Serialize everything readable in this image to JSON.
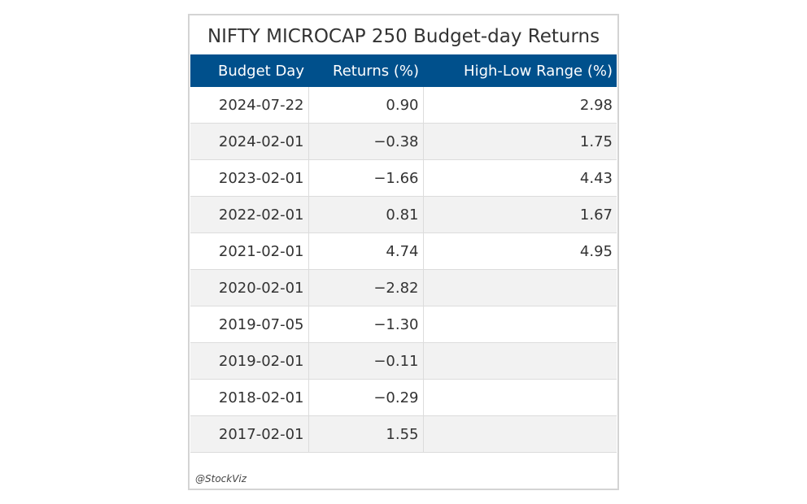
{
  "chart_data": {
    "type": "table",
    "title": "NIFTY MICROCAP 250 Budget-day Returns",
    "columns": [
      "Budget Day",
      "Returns (%)",
      "High-Low Range (%)"
    ],
    "rows": [
      [
        "2024-07-22",
        "0.90",
        "2.98"
      ],
      [
        "2024-02-01",
        "−0.38",
        "1.75"
      ],
      [
        "2023-02-01",
        "−1.66",
        "4.43"
      ],
      [
        "2022-02-01",
        "0.81",
        "1.67"
      ],
      [
        "2021-02-01",
        "4.74",
        "4.95"
      ],
      [
        "2020-02-01",
        "−2.82",
        ""
      ],
      [
        "2019-07-05",
        "−1.30",
        ""
      ],
      [
        "2019-02-01",
        "−0.11",
        ""
      ],
      [
        "2018-02-01",
        "−0.29",
        ""
      ],
      [
        "2017-02-01",
        "1.55",
        ""
      ]
    ],
    "credit": "@StockViz",
    "colors": {
      "header_bg": "#00508c",
      "header_text": "#ffffff",
      "stripe": "#f2f2f2",
      "border": "#d4d4d4"
    }
  }
}
